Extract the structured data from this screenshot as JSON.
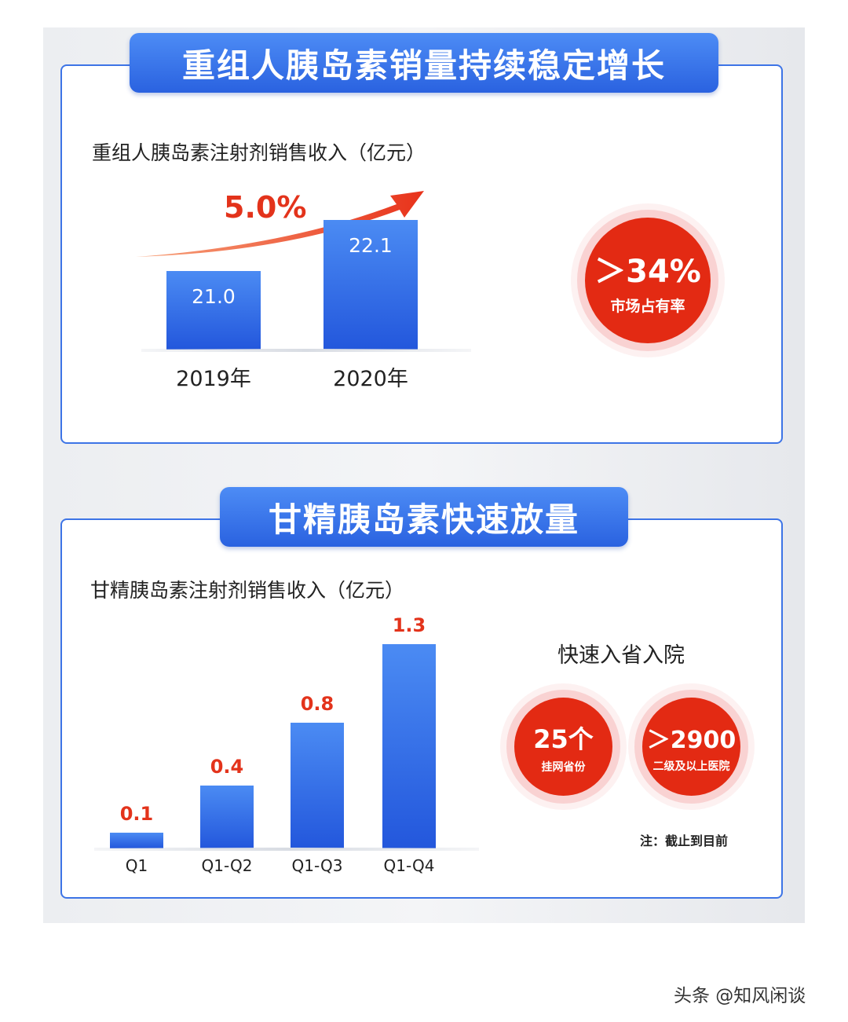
{
  "section1": {
    "banner": "重组人胰岛素销量持续稳定增长",
    "subtitle": "重组人胰岛素注射剂销售收入（亿元）",
    "growth": "5.0%",
    "badge_value": "＞34%",
    "badge_label": "市场占有率"
  },
  "section2": {
    "banner": "甘精胰岛素快速放量",
    "subtitle": "甘精胰岛素注射剂销售收入（亿元）",
    "heading": "快速入省入院",
    "badge1_value": "25个",
    "badge1_label": "挂网省份",
    "badge2_value": "＞2900",
    "badge2_label": "二级及以上医院",
    "note": "注：截止到目前"
  },
  "watermark": "头条 @知风闲谈",
  "colors": {
    "blue": "#2a62e0",
    "red": "#e32a13"
  },
  "chart_data": [
    {
      "type": "bar",
      "title": "重组人胰岛素注射剂销售收入（亿元）",
      "categories": [
        "2019年",
        "2020年"
      ],
      "values": [
        21.0,
        22.1
      ],
      "labels": [
        "21.0",
        "22.1"
      ],
      "ylim": [
        19.3,
        23
      ],
      "annotation": "5.0%"
    },
    {
      "type": "bar",
      "title": "甘精胰岛素注射剂销售收入（亿元）",
      "categories": [
        "Q1",
        "Q1-Q2",
        "Q1-Q3",
        "Q1-Q4"
      ],
      "values": [
        0.1,
        0.4,
        0.8,
        1.3
      ],
      "labels": [
        "0.1",
        "0.4",
        "0.8",
        "1.3"
      ],
      "ylim": [
        0,
        1.4
      ]
    }
  ]
}
